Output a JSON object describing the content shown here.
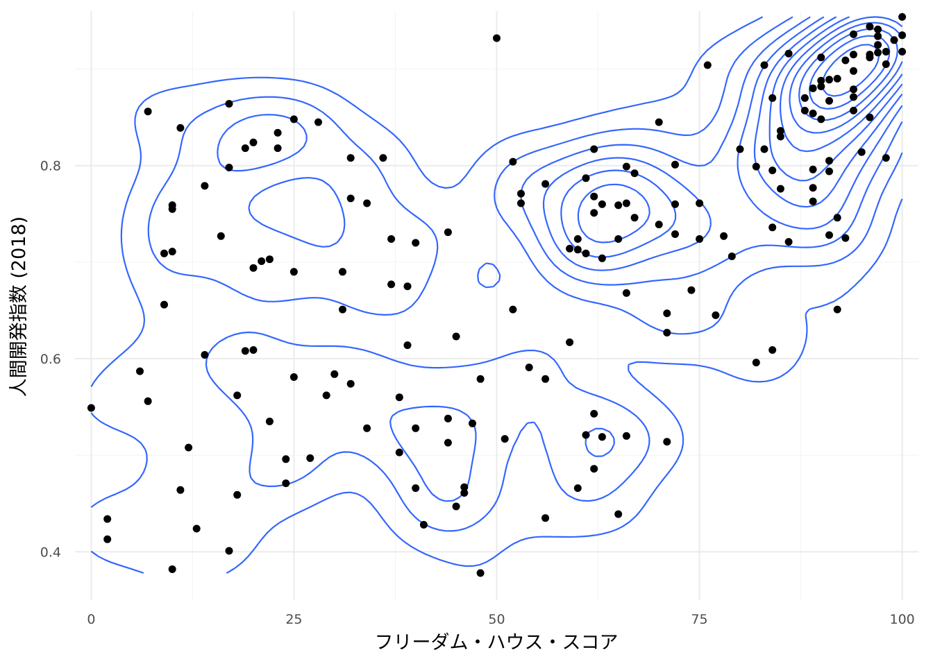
{
  "chart_data": {
    "type": "scatter",
    "title": "",
    "xlabel": "フリーダム・ハウス・スコア",
    "ylabel": "人間開発指数 (2018)",
    "xlim": [
      -2,
      102
    ],
    "ylim": [
      0.35,
      0.96
    ],
    "x_ticks": [
      {
        "value": 0,
        "label": "0"
      },
      {
        "value": 25,
        "label": "25"
      },
      {
        "value": 50,
        "label": "50"
      },
      {
        "value": 75,
        "label": "75"
      },
      {
        "value": 100,
        "label": "100"
      }
    ],
    "y_ticks": [
      {
        "value": 0.4,
        "label": "0.4"
      },
      {
        "value": 0.6,
        "label": "0.6"
      },
      {
        "value": 0.8,
        "label": "0.8"
      }
    ],
    "grid": true,
    "legend": "none",
    "point_color": "#000000",
    "contour_color": "#3366ff",
    "overlay": "2d density contours",
    "points": [
      [
        0,
        0.549
      ],
      [
        2,
        0.434
      ],
      [
        2,
        0.413
      ],
      [
        6,
        0.587
      ],
      [
        7,
        0.556
      ],
      [
        7,
        0.856
      ],
      [
        9,
        0.709
      ],
      [
        9,
        0.656
      ],
      [
        10,
        0.711
      ],
      [
        10,
        0.755
      ],
      [
        10,
        0.759
      ],
      [
        10,
        0.382
      ],
      [
        11,
        0.839
      ],
      [
        11,
        0.464
      ],
      [
        12,
        0.508
      ],
      [
        13,
        0.424
      ],
      [
        14,
        0.779
      ],
      [
        14,
        0.604
      ],
      [
        16,
        0.727
      ],
      [
        17,
        0.864
      ],
      [
        17,
        0.798
      ],
      [
        17,
        0.401
      ],
      [
        18,
        0.562
      ],
      [
        18,
        0.459
      ],
      [
        19,
        0.608
      ],
      [
        19,
        0.818
      ],
      [
        20,
        0.609
      ],
      [
        20,
        0.824
      ],
      [
        20,
        0.694
      ],
      [
        21,
        0.701
      ],
      [
        22,
        0.703
      ],
      [
        22,
        0.535
      ],
      [
        23,
        0.818
      ],
      [
        23,
        0.834
      ],
      [
        24,
        0.496
      ],
      [
        24,
        0.471
      ],
      [
        25,
        0.848
      ],
      [
        25,
        0.69
      ],
      [
        25,
        0.581
      ],
      [
        27,
        0.497
      ],
      [
        28,
        0.845
      ],
      [
        29,
        0.562
      ],
      [
        30,
        0.584
      ],
      [
        31,
        0.69
      ],
      [
        31,
        0.651
      ],
      [
        32,
        0.808
      ],
      [
        32,
        0.766
      ],
      [
        32,
        0.574
      ],
      [
        34,
        0.761
      ],
      [
        34,
        0.528
      ],
      [
        36,
        0.808
      ],
      [
        37,
        0.724
      ],
      [
        37,
        0.677
      ],
      [
        38,
        0.56
      ],
      [
        38,
        0.503
      ],
      [
        39,
        0.675
      ],
      [
        39,
        0.614
      ],
      [
        40,
        0.72
      ],
      [
        40,
        0.528
      ],
      [
        40,
        0.466
      ],
      [
        41,
        0.428
      ],
      [
        44,
        0.731
      ],
      [
        44,
        0.538
      ],
      [
        44,
        0.513
      ],
      [
        45,
        0.623
      ],
      [
        45,
        0.447
      ],
      [
        46,
        0.467
      ],
      [
        46,
        0.461
      ],
      [
        47,
        0.533
      ],
      [
        48,
        0.579
      ],
      [
        48,
        0.378
      ],
      [
        50,
        0.932
      ],
      [
        51,
        0.517
      ],
      [
        52,
        0.804
      ],
      [
        52,
        0.651
      ],
      [
        53,
        0.771
      ],
      [
        53,
        0.761
      ],
      [
        54,
        0.591
      ],
      [
        56,
        0.781
      ],
      [
        56,
        0.579
      ],
      [
        56,
        0.435
      ],
      [
        59,
        0.714
      ],
      [
        59,
        0.617
      ],
      [
        60,
        0.724
      ],
      [
        60,
        0.713
      ],
      [
        60,
        0.466
      ],
      [
        61,
        0.787
      ],
      [
        61,
        0.709
      ],
      [
        61,
        0.521
      ],
      [
        62,
        0.817
      ],
      [
        62,
        0.768
      ],
      [
        62,
        0.751
      ],
      [
        62,
        0.543
      ],
      [
        62,
        0.486
      ],
      [
        63,
        0.76
      ],
      [
        63,
        0.704
      ],
      [
        63,
        0.519
      ],
      [
        65,
        0.759
      ],
      [
        65,
        0.724
      ],
      [
        65,
        0.439
      ],
      [
        66,
        0.799
      ],
      [
        66,
        0.761
      ],
      [
        66,
        0.668
      ],
      [
        66,
        0.52
      ],
      [
        67,
        0.792
      ],
      [
        67,
        0.746
      ],
      [
        70,
        0.845
      ],
      [
        70,
        0.739
      ],
      [
        71,
        0.647
      ],
      [
        71,
        0.627
      ],
      [
        71,
        0.514
      ],
      [
        72,
        0.801
      ],
      [
        72,
        0.76
      ],
      [
        72,
        0.729
      ],
      [
        74,
        0.671
      ],
      [
        75,
        0.761
      ],
      [
        75,
        0.724
      ],
      [
        76,
        0.904
      ],
      [
        77,
        0.645
      ],
      [
        78,
        0.727
      ],
      [
        79,
        0.706
      ],
      [
        80,
        0.817
      ],
      [
        82,
        0.799
      ],
      [
        82,
        0.596
      ],
      [
        83,
        0.904
      ],
      [
        83,
        0.817
      ],
      [
        84,
        0.87
      ],
      [
        84,
        0.795
      ],
      [
        84,
        0.736
      ],
      [
        84,
        0.609
      ],
      [
        85,
        0.836
      ],
      [
        85,
        0.83
      ],
      [
        85,
        0.776
      ],
      [
        86,
        0.916
      ],
      [
        86,
        0.721
      ],
      [
        88,
        0.87
      ],
      [
        88,
        0.857
      ],
      [
        89,
        0.88
      ],
      [
        89,
        0.854
      ],
      [
        89,
        0.796
      ],
      [
        89,
        0.777
      ],
      [
        89,
        0.763
      ],
      [
        90,
        0.912
      ],
      [
        90,
        0.888
      ],
      [
        90,
        0.882
      ],
      [
        90,
        0.848
      ],
      [
        91,
        0.889
      ],
      [
        91,
        0.867
      ],
      [
        91,
        0.805
      ],
      [
        91,
        0.794
      ],
      [
        91,
        0.728
      ],
      [
        92,
        0.89
      ],
      [
        92,
        0.746
      ],
      [
        92,
        0.651
      ],
      [
        93,
        0.909
      ],
      [
        93,
        0.725
      ],
      [
        94,
        0.936
      ],
      [
        94,
        0.915
      ],
      [
        94,
        0.898
      ],
      [
        94,
        0.879
      ],
      [
        94,
        0.871
      ],
      [
        94,
        0.857
      ],
      [
        95,
        0.814
      ],
      [
        96,
        0.944
      ],
      [
        96,
        0.915
      ],
      [
        96,
        0.912
      ],
      [
        96,
        0.85
      ],
      [
        97,
        0.941
      ],
      [
        97,
        0.934
      ],
      [
        97,
        0.925
      ],
      [
        97,
        0.917
      ],
      [
        98,
        0.918
      ],
      [
        98,
        0.905
      ],
      [
        98,
        0.808
      ],
      [
        99,
        0.93
      ],
      [
        100,
        0.954
      ],
      [
        100,
        0.935
      ],
      [
        100,
        0.918
      ]
    ]
  }
}
